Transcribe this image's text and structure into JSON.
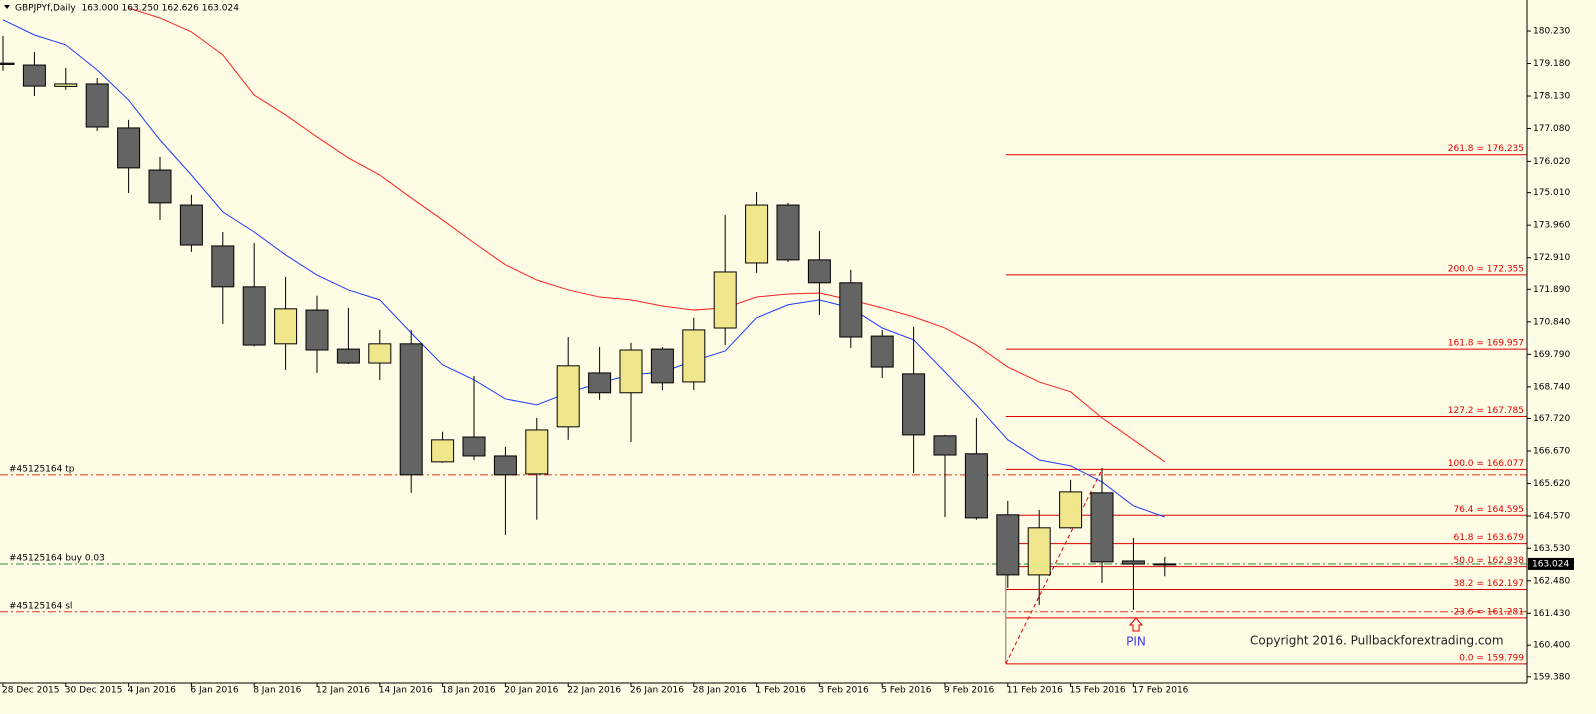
{
  "chart_data": {
    "type": "candlestick",
    "title": "GBPJPYf,Daily  163.000 163.250 162.626 163.024",
    "categories": [
      "28 Dec 2015",
      null,
      "30 Dec 2015",
      null,
      "4 Jan 2016",
      null,
      "6 Jan 2016",
      null,
      "8 Jan 2016",
      null,
      "12 Jan 2016",
      null,
      "14 Jan 2016",
      null,
      "18 Jan 2016",
      null,
      "20 Jan 2016",
      null,
      "22 Jan 2016",
      null,
      "26 Jan 2016",
      null,
      "28 Jan 2016",
      null,
      "1 Feb 2016",
      null,
      "3 Feb 2016",
      null,
      "5 Feb 2016",
      null,
      "9 Feb 2016",
      null,
      "11 Feb 2016",
      null,
      "15 Feb 2016",
      null,
      "17 Feb 2016",
      null
    ],
    "open": [
      179.19,
      179.13,
      178.44,
      178.52,
      177.1,
      175.74,
      174.61,
      173.29,
      171.97,
      170.13,
      171.22,
      169.96,
      169.51,
      170.13,
      166.32,
      167.12,
      166.51,
      165.93,
      167.45,
      169.19,
      168.55,
      169.96,
      168.9,
      170.64,
      172.74,
      174.61,
      172.84,
      172.1,
      170.38,
      169.16,
      167.16,
      166.58,
      164.61,
      162.67,
      164.19,
      165.32,
      163.12,
      163.0
    ],
    "high": [
      180.07,
      179.55,
      179.04,
      178.71,
      177.36,
      176.16,
      174.94,
      173.74,
      173.39,
      172.29,
      171.68,
      171.29,
      170.58,
      170.58,
      167.29,
      169.09,
      166.8,
      167.74,
      170.35,
      170.03,
      170.16,
      170.03,
      170.97,
      174.29,
      175.03,
      174.68,
      173.77,
      172.52,
      170.58,
      170.68,
      167.19,
      167.74,
      165.06,
      164.77,
      165.74,
      166.12,
      163.86,
      163.25
    ],
    "low": [
      178.94,
      178.13,
      178.33,
      177.0,
      175.0,
      174.13,
      173.1,
      170.77,
      170.05,
      169.29,
      169.19,
      169.48,
      168.96,
      165.32,
      166.29,
      166.38,
      163.96,
      164.45,
      167.03,
      168.32,
      166.96,
      168.64,
      168.64,
      170.09,
      172.42,
      172.77,
      171.06,
      170.0,
      169.03,
      165.96,
      164.54,
      164.45,
      162.25,
      161.7,
      164.16,
      162.41,
      161.54,
      162.626
    ],
    "close": [
      179.15,
      178.45,
      178.52,
      177.13,
      175.81,
      174.68,
      173.32,
      171.97,
      170.09,
      171.26,
      169.93,
      169.51,
      170.13,
      165.9,
      167.03,
      166.51,
      165.9,
      167.35,
      169.42,
      168.55,
      169.93,
      168.87,
      170.58,
      172.45,
      174.61,
      172.84,
      172.1,
      170.35,
      169.38,
      167.19,
      166.54,
      164.51,
      162.67,
      164.19,
      165.35,
      163.09,
      163.02,
      163.024
    ],
    "up_color": "#f0e68c",
    "down_color": "#646464",
    "moving_averages": [
      {
        "color": "#1e3cff",
        "values": [
          180.59,
          180.1,
          179.78,
          178.97,
          178.0,
          176.71,
          175.58,
          174.39,
          173.74,
          173.0,
          172.35,
          171.87,
          171.55,
          170.48,
          169.45,
          168.97,
          168.35,
          168.16,
          168.55,
          168.87,
          169.13,
          169.22,
          169.58,
          169.9,
          170.97,
          171.39,
          171.55,
          171.29,
          170.64,
          170.26,
          169.22,
          168.16,
          167.03,
          166.38,
          166.19,
          165.67,
          164.9,
          164.54
        ]
      },
      {
        "color": "#ff2020",
        "values": [
          null,
          null,
          null,
          null,
          180.97,
          180.65,
          180.2,
          179.46,
          178.16,
          177.52,
          176.81,
          176.13,
          175.58,
          174.84,
          174.13,
          173.39,
          172.68,
          172.19,
          171.87,
          171.64,
          171.55,
          171.35,
          171.22,
          171.29,
          171.64,
          171.74,
          171.77,
          171.55,
          171.29,
          171.0,
          170.64,
          170.09,
          169.38,
          168.9,
          168.58,
          167.74,
          167.03,
          166.32
        ]
      }
    ],
    "fibonacci": {
      "color": "#e00000",
      "levels": [
        {
          "value": 176.235,
          "label": "261.8 = 176.235"
        },
        {
          "value": 172.355,
          "label": "200.0 = 172.355"
        },
        {
          "value": 169.957,
          "label": "161.8 = 169.957"
        },
        {
          "value": 167.785,
          "label": "127.2 = 167.785"
        },
        {
          "value": 166.077,
          "label": "100.0 = 166.077"
        },
        {
          "value": 164.595,
          "label": "76.4 = 164.595"
        },
        {
          "value": 163.679,
          "label": "61.8 = 163.679"
        },
        {
          "value": 162.938,
          "label": "50.0 = 162.938"
        },
        {
          "value": 162.197,
          "label": "38.2 = 162.197"
        },
        {
          "value": 161.281,
          "label": "23.6 = 161.281"
        },
        {
          "value": 159.799,
          "label": "0.0 = 159.799"
        }
      ]
    },
    "order_lines": [
      {
        "label": "#45125164 tp",
        "value": 165.9,
        "color": "#e0301e"
      },
      {
        "label": "#45125164 buy 0.03",
        "value": 163.02,
        "color": "#2e8b3a"
      },
      {
        "label": "#45125164 sl",
        "value": 161.48,
        "color": "#e0301e"
      }
    ],
    "annotation": "PIN",
    "watermark": "Copyright 2016. Pullbackforextrading.com",
    "last_price": 163.024,
    "ylim": [
      159.18,
      181.23
    ],
    "yticks": [
      {
        "value": 180.23,
        "label": "180.230"
      },
      {
        "value": 179.18,
        "label": "179.180"
      },
      {
        "value": 178.13,
        "label": "178.130"
      },
      {
        "value": 177.08,
        "label": "177.080"
      },
      {
        "value": 176.02,
        "label": "176.020"
      },
      {
        "value": 175.01,
        "label": "175.010"
      },
      {
        "value": 173.96,
        "label": "173.960"
      },
      {
        "value": 172.91,
        "label": "172.910"
      },
      {
        "value": 171.89,
        "label": "171.890"
      },
      {
        "value": 170.84,
        "label": "170.840"
      },
      {
        "value": 169.79,
        "label": "169.790"
      },
      {
        "value": 168.74,
        "label": "168.740"
      },
      {
        "value": 167.72,
        "label": "167.720"
      },
      {
        "value": 166.67,
        "label": "166.670"
      },
      {
        "value": 165.62,
        "label": "165.620"
      },
      {
        "value": 164.57,
        "label": "164.570"
      },
      {
        "value": 163.53,
        "label": "163.530"
      },
      {
        "value": 162.48,
        "label": "162.480"
      },
      {
        "value": 161.43,
        "label": "161.430"
      },
      {
        "value": 160.4,
        "label": "160.400"
      },
      {
        "value": 159.38,
        "label": "159.380"
      }
    ]
  }
}
